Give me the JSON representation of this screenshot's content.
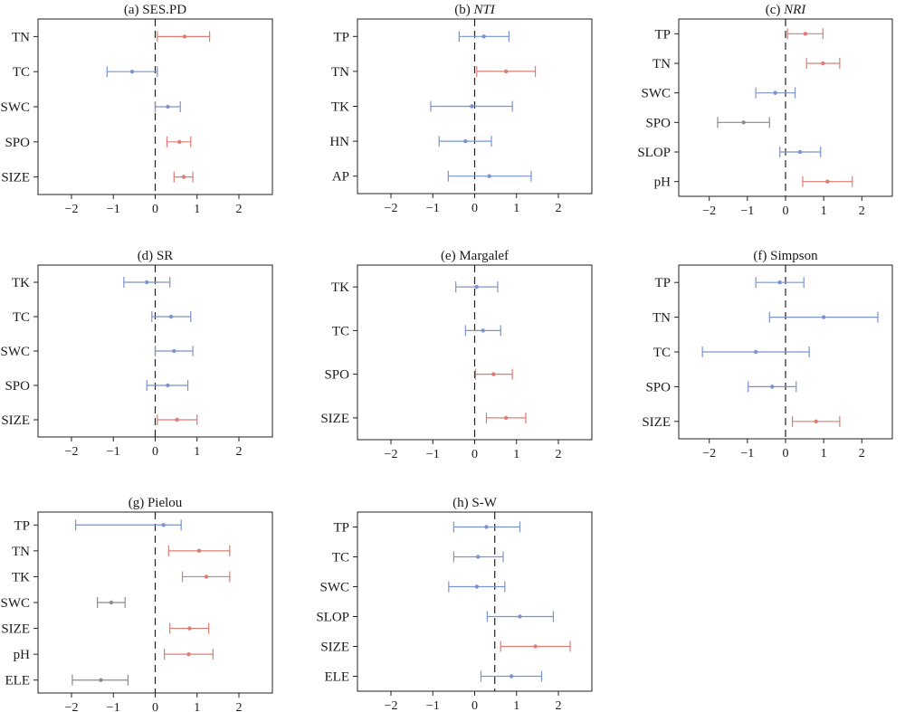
{
  "colors": {
    "positive": "#e07b73",
    "negative": "#7b93cf",
    "nonsig": "#8c8c8c"
  },
  "chart_data": [
    {
      "type": "forest",
      "title_prefix": "(a) ",
      "title_main": "SES.PD",
      "italic": false,
      "xlim": [
        -2.8,
        2.8
      ],
      "xticks": [
        "−2",
        "−1",
        "0",
        "1",
        "2"
      ],
      "xtick_values": [
        -2,
        -1,
        0,
        1,
        2
      ],
      "refline": 0,
      "rows": [
        {
          "label": "TN",
          "est": 0.7,
          "lo": 0.05,
          "hi": 1.3,
          "color": "positive"
        },
        {
          "label": "TC",
          "est": -0.55,
          "lo": -1.15,
          "hi": 0.05,
          "color": "negative"
        },
        {
          "label": "SWC",
          "est": 0.3,
          "lo": 0.0,
          "hi": 0.6,
          "color": "negative"
        },
        {
          "label": "SPO",
          "est": 0.58,
          "lo": 0.28,
          "hi": 0.85,
          "color": "positive"
        },
        {
          "label": "SIZE",
          "est": 0.68,
          "lo": 0.45,
          "hi": 0.9,
          "color": "positive"
        }
      ]
    },
    {
      "type": "forest",
      "title_prefix": "(b) ",
      "title_main": "NTI",
      "italic": true,
      "xlim": [
        -2.8,
        2.8
      ],
      "xticks": [
        "−2",
        "−1",
        "0",
        "1",
        "2"
      ],
      "xtick_values": [
        -2,
        -1,
        0,
        1,
        2
      ],
      "refline": 0,
      "rows": [
        {
          "label": "TP",
          "est": 0.22,
          "lo": -0.37,
          "hi": 0.82,
          "color": "negative"
        },
        {
          "label": "TN",
          "est": 0.75,
          "lo": 0.05,
          "hi": 1.45,
          "color": "positive"
        },
        {
          "label": "TK",
          "est": -0.07,
          "lo": -1.05,
          "hi": 0.9,
          "color": "negative"
        },
        {
          "label": "HN",
          "est": -0.22,
          "lo": -0.85,
          "hi": 0.4,
          "color": "negative"
        },
        {
          "label": "AP",
          "est": 0.35,
          "lo": -0.63,
          "hi": 1.35,
          "color": "negative"
        }
      ]
    },
    {
      "type": "forest",
      "title_prefix": "(c) ",
      "title_main": "NRI",
      "italic": true,
      "xlim": [
        -2.8,
        2.8
      ],
      "xticks": [
        "−2",
        "−1",
        "0",
        "1",
        "2"
      ],
      "xtick_values": [
        -2,
        -1,
        0,
        1,
        2
      ],
      "refline": 0,
      "rows": [
        {
          "label": "TP",
          "est": 0.52,
          "lo": 0.05,
          "hi": 0.98,
          "color": "positive"
        },
        {
          "label": "TN",
          "est": 0.98,
          "lo": 0.55,
          "hi": 1.42,
          "color": "positive"
        },
        {
          "label": "SWC",
          "est": -0.27,
          "lo": -0.78,
          "hi": 0.25,
          "color": "negative"
        },
        {
          "label": "SPO",
          "est": -1.1,
          "lo": -1.78,
          "hi": -0.42,
          "color": "nonsig"
        },
        {
          "label": "SLOP",
          "est": 0.38,
          "lo": -0.15,
          "hi": 0.92,
          "color": "negative"
        },
        {
          "label": "pH",
          "est": 1.1,
          "lo": 0.45,
          "hi": 1.75,
          "color": "positive"
        }
      ]
    },
    {
      "type": "forest",
      "title_prefix": "(d) ",
      "title_main": "SR",
      "italic": false,
      "xlim": [
        -2.8,
        2.8
      ],
      "xticks": [
        "−2",
        "−1",
        "0",
        "1",
        "2"
      ],
      "xtick_values": [
        -2,
        -1,
        0,
        1,
        2
      ],
      "refline": 0,
      "rows": [
        {
          "label": "TK",
          "est": -0.2,
          "lo": -0.75,
          "hi": 0.35,
          "color": "negative"
        },
        {
          "label": "TC",
          "est": 0.38,
          "lo": -0.08,
          "hi": 0.85,
          "color": "negative"
        },
        {
          "label": "SWC",
          "est": 0.45,
          "lo": 0.0,
          "hi": 0.9,
          "color": "negative"
        },
        {
          "label": "SPO",
          "est": 0.3,
          "lo": -0.2,
          "hi": 0.78,
          "color": "negative"
        },
        {
          "label": "SIZE",
          "est": 0.52,
          "lo": 0.05,
          "hi": 1.0,
          "color": "positive"
        }
      ]
    },
    {
      "type": "forest",
      "title_prefix": "(e) ",
      "title_main": "Margalef",
      "italic": false,
      "xlim": [
        -2.8,
        2.8
      ],
      "xticks": [
        "−2",
        "−1",
        "0",
        "1",
        "2"
      ],
      "xtick_values": [
        -2,
        -1,
        0,
        1,
        2
      ],
      "refline": 0,
      "rows": [
        {
          "label": "TK",
          "est": 0.05,
          "lo": -0.45,
          "hi": 0.55,
          "color": "negative"
        },
        {
          "label": "TC",
          "est": 0.2,
          "lo": -0.22,
          "hi": 0.62,
          "color": "negative"
        },
        {
          "label": "SPO",
          "est": 0.45,
          "lo": 0.02,
          "hi": 0.9,
          "color": "positive"
        },
        {
          "label": "SIZE",
          "est": 0.75,
          "lo": 0.28,
          "hi": 1.22,
          "color": "positive"
        }
      ]
    },
    {
      "type": "forest",
      "title_prefix": "(f) ",
      "title_main": "Simpson",
      "italic": false,
      "xlim": [
        -2.8,
        2.8
      ],
      "xticks": [
        "−2",
        "−1",
        "0",
        "1",
        "2"
      ],
      "xtick_values": [
        -2,
        -1,
        0,
        1,
        2
      ],
      "refline": 0,
      "rows": [
        {
          "label": "TP",
          "est": -0.15,
          "lo": -0.78,
          "hi": 0.48,
          "color": "negative"
        },
        {
          "label": "TN",
          "est": 1.0,
          "lo": -0.42,
          "hi": 2.42,
          "color": "negative"
        },
        {
          "label": "TC",
          "est": -0.78,
          "lo": -2.18,
          "hi": 0.62,
          "color": "negative"
        },
        {
          "label": "SPO",
          "est": -0.35,
          "lo": -0.98,
          "hi": 0.28,
          "color": "negative"
        },
        {
          "label": "SIZE",
          "est": 0.8,
          "lo": 0.18,
          "hi": 1.42,
          "color": "positive"
        }
      ]
    },
    {
      "type": "forest",
      "title_prefix": "(g) ",
      "title_main": "Pielou",
      "italic": false,
      "xlim": [
        -2.8,
        2.8
      ],
      "xticks": [
        "−2",
        "−1",
        "0",
        "1",
        "2"
      ],
      "xtick_values": [
        -2,
        -1,
        0,
        1,
        2
      ],
      "refline": 0,
      "rows": [
        {
          "label": "TP",
          "est": 0.2,
          "lo": -1.9,
          "hi": 0.62,
          "color": "negative"
        },
        {
          "label": "TN",
          "est": 1.05,
          "lo": 0.32,
          "hi": 1.78,
          "color": "positive"
        },
        {
          "label": "TK",
          "est": 1.22,
          "lo": 0.65,
          "hi": 1.78,
          "color": "positive"
        },
        {
          "label": "SWC",
          "est": -1.05,
          "lo": -1.38,
          "hi": -0.72,
          "color": "nonsig"
        },
        {
          "label": "SIZE",
          "est": 0.82,
          "lo": 0.35,
          "hi": 1.28,
          "color": "positive"
        },
        {
          "label": "pH",
          "est": 0.8,
          "lo": 0.22,
          "hi": 1.38,
          "color": "positive"
        },
        {
          "label": "ELE",
          "est": -1.3,
          "lo": -1.98,
          "hi": -0.65,
          "color": "nonsig"
        }
      ]
    },
    {
      "type": "forest",
      "title_prefix": "(h) ",
      "title_main": "S-W",
      "italic": false,
      "xlim": [
        -2.8,
        2.8
      ],
      "xticks": [
        "−2",
        "−1",
        "0",
        "1",
        "2"
      ],
      "xtick_values": [
        -2,
        -1,
        0,
        1,
        2
      ],
      "refline": 0.48,
      "rows": [
        {
          "label": "TP",
          "est": 0.28,
          "lo": -0.5,
          "hi": 1.08,
          "color": "negative"
        },
        {
          "label": "TC",
          "est": 0.08,
          "lo": -0.5,
          "hi": 0.68,
          "color": "negative"
        },
        {
          "label": "SWC",
          "est": 0.05,
          "lo": -0.62,
          "hi": 0.72,
          "color": "negative"
        },
        {
          "label": "SLOP",
          "est": 1.08,
          "lo": 0.3,
          "hi": 1.88,
          "color": "negative"
        },
        {
          "label": "SIZE",
          "est": 1.45,
          "lo": 0.62,
          "hi": 2.28,
          "color": "positive"
        },
        {
          "label": "ELE",
          "est": 0.88,
          "lo": 0.15,
          "hi": 1.6,
          "color": "negative"
        }
      ]
    }
  ]
}
